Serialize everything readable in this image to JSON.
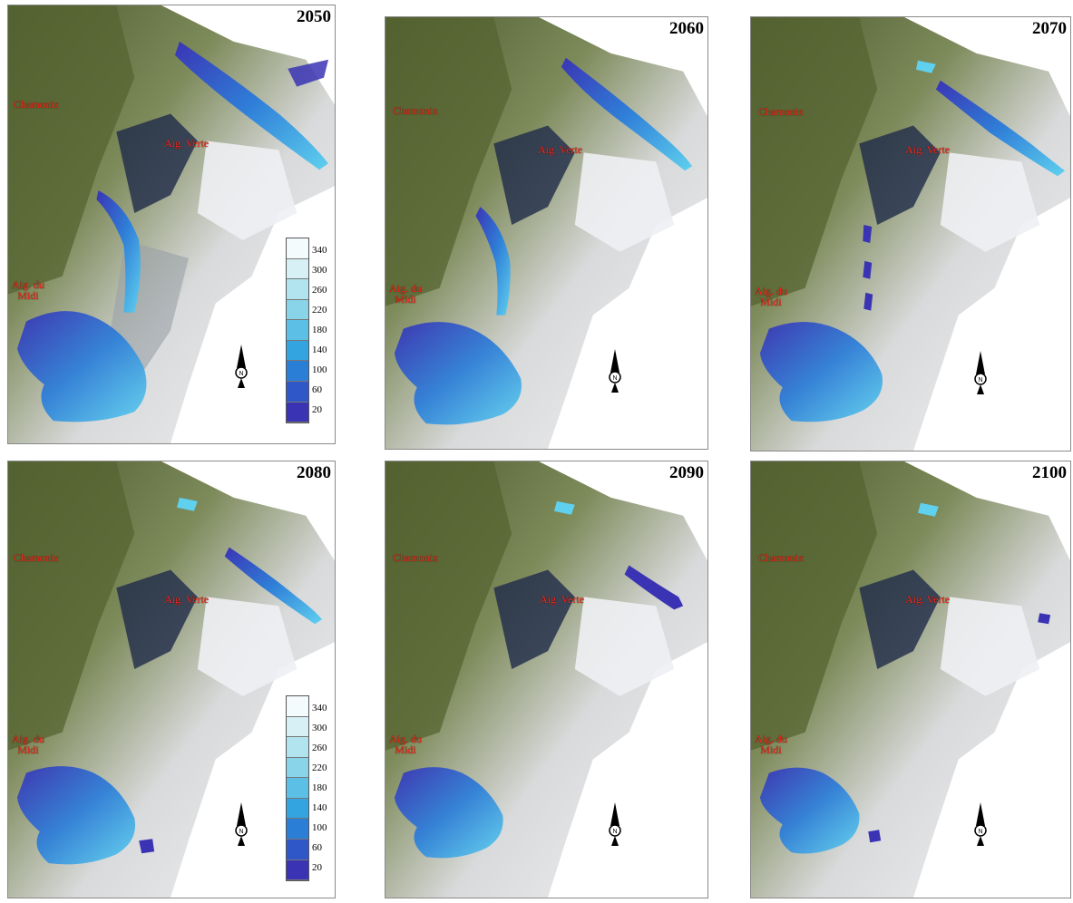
{
  "panels": [
    {
      "year": "2050",
      "labels": {
        "chamonix": "Chamonix",
        "verte": "Aig. Verte",
        "midi_line1": "Aig. du",
        "midi_line2": "Midi"
      },
      "legend": true
    },
    {
      "year": "2060",
      "labels": {
        "chamonix": "Chamonix",
        "verte": "Aig. Verte",
        "midi_line1": "Aig. du",
        "midi_line2": "Midi"
      },
      "legend": false
    },
    {
      "year": "2070",
      "labels": {
        "chamonix": "Chamonix",
        "verte": "Aig. Verte",
        "midi_line1": "Aig. du",
        "midi_line2": "Midi"
      },
      "legend": false
    },
    {
      "year": "2080",
      "labels": {
        "chamonix": "Chamonix",
        "verte": "Aig. Verte",
        "midi_line1": "Aig. du",
        "midi_line2": "Midi"
      },
      "legend": true
    },
    {
      "year": "2090",
      "labels": {
        "chamonix": "Chamonix",
        "verte": "Aig. Verte",
        "midi_line1": "Aig. du",
        "midi_line2": "Midi"
      },
      "legend": false
    },
    {
      "year": "2100",
      "labels": {
        "chamonix": "Chamonix",
        "verte": "Aig. Verte",
        "midi_line1": "Aig. du",
        "midi_line2": "Midi"
      },
      "legend": false
    }
  ],
  "legend_values": [
    "340",
    "300",
    "260",
    "220",
    "180",
    "140",
    "100",
    "60",
    "20"
  ],
  "legend_colors": [
    "#f4fbfd",
    "#d6f0f6",
    "#b2e4f0",
    "#8ad4ea",
    "#5cc0e6",
    "#33a4e0",
    "#2a7ed6",
    "#3057c8",
    "#3a34b4"
  ],
  "colors": {
    "ice_low": "#3a34b4",
    "ice_mid": "#2f7fd8",
    "ice_high": "#5fd0ee",
    "label_red": "#ff2a1a"
  },
  "icons": {
    "north_arrow": "north-arrow-icon"
  }
}
